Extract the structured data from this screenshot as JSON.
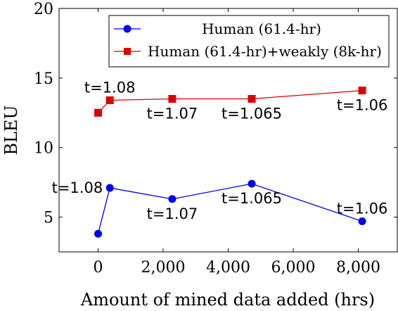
{
  "chart_data": {
    "type": "line",
    "xlabel": "Amount of mined data added (hrs)",
    "ylabel": "BLEU",
    "xlim": [
      -1200,
      9200
    ],
    "ylim": [
      2.5,
      20
    ],
    "xticks": [
      0,
      2000,
      4000,
      6000,
      8000
    ],
    "xtick_labels": [
      "0",
      "2,000",
      "4,000",
      "6,000",
      "8,000"
    ],
    "yticks": [
      5,
      10,
      15,
      20
    ],
    "ytick_labels": [
      "5",
      "10",
      "15",
      "20"
    ],
    "grid": false,
    "legend_position": "top-right",
    "series": [
      {
        "name": "Human (61.4-hr)",
        "color": "#0000ee",
        "marker": "circle",
        "x": [
          0,
          361,
          2280,
          4725,
          8120
        ],
        "y": [
          3.8,
          7.1,
          6.3,
          7.4,
          4.7
        ]
      },
      {
        "name": "Human (61.4-hr)+weakly (8k-hr)",
        "color": "#dd0000",
        "marker": "square",
        "x": [
          0,
          361,
          2280,
          4725,
          8120
        ],
        "y": [
          12.5,
          13.4,
          13.5,
          13.5,
          14.1
        ]
      }
    ],
    "annotations": [
      {
        "text": "t=1.08",
        "x": 361,
        "y": 13.4,
        "anchor": "above"
      },
      {
        "text": "t=1.07",
        "x": 2280,
        "y": 13.5,
        "anchor": "below"
      },
      {
        "text": "t=1.065",
        "x": 4725,
        "y": 13.5,
        "anchor": "below"
      },
      {
        "text": "t=1.06",
        "x": 8120,
        "y": 14.1,
        "anchor": "below"
      },
      {
        "text": "t=1.08",
        "x": 361,
        "y": 7.1,
        "anchor": "left"
      },
      {
        "text": "t=1.07",
        "x": 2280,
        "y": 6.3,
        "anchor": "below"
      },
      {
        "text": "t=1.065",
        "x": 4725,
        "y": 7.4,
        "anchor": "below"
      },
      {
        "text": "t=1.06",
        "x": 8120,
        "y": 4.7,
        "anchor": "above"
      }
    ]
  }
}
